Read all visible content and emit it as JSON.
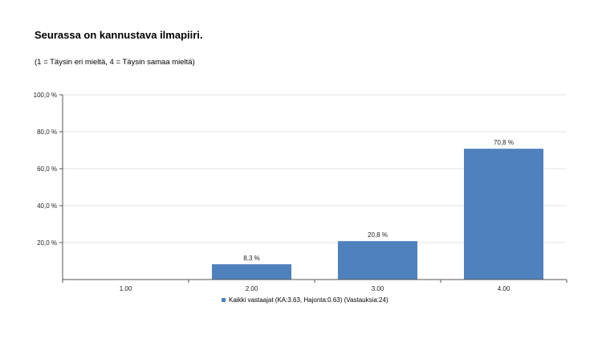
{
  "title": "Seurassa on kannustava ilmapiiri.",
  "subtitle": "(1 = Täysin eri mieltä, 4 = Täysin samaa mieltä)",
  "colors": {
    "bar": "#4f81bd",
    "grid": "#e3e3e3",
    "axis": "#555555"
  },
  "chart_data": {
    "type": "bar",
    "categories": [
      "1.00",
      "2.00",
      "3.00",
      "4.00"
    ],
    "series": [
      {
        "name": "Kaikki vastaajat (KA:3.63, Hajonta:0.63) (Vastauksia:24)",
        "values": [
          0,
          8.3,
          20.8,
          70.8
        ],
        "labels": [
          "",
          "8,3 %",
          "20,8 %",
          "70,8 %"
        ]
      }
    ],
    "ylim": [
      0,
      100
    ],
    "yticks": [
      20,
      40,
      60,
      80,
      100
    ],
    "ytick_labels": [
      "20,0 %",
      "40,0 %",
      "60,0 %",
      "80,0 %",
      "100,0 %"
    ],
    "grid": true,
    "legend": "bottom"
  }
}
